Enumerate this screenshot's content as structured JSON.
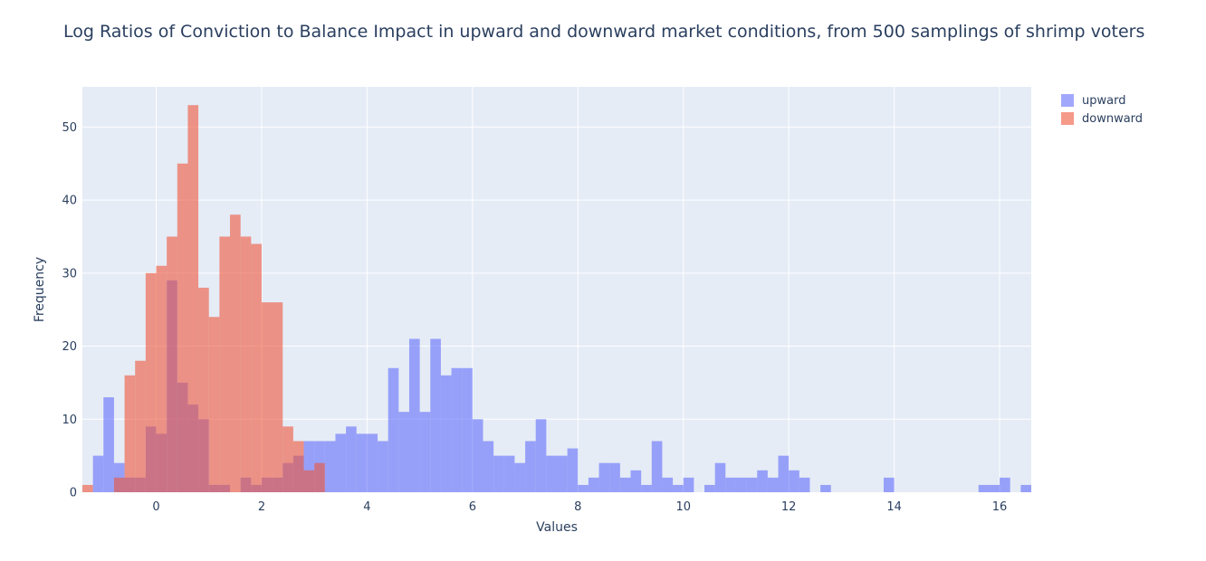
{
  "chart_data": {
    "type": "histogram",
    "title": "Log Ratios of Conviction to Balance Impact in upward and downward market conditions, from 500 samplings of shrimp voters",
    "xlabel": "Values",
    "ylabel": "Frequency",
    "xlim": [
      -1.4,
      16.6
    ],
    "ylim": [
      0,
      55.5
    ],
    "x_ticks": [
      0,
      2,
      4,
      6,
      8,
      10,
      12,
      14,
      16
    ],
    "y_ticks": [
      0,
      10,
      20,
      30,
      40,
      50
    ],
    "bin_width": 0.2,
    "grid": true,
    "barmode": "overlay",
    "opacity": 0.6,
    "legend_position": "top-right",
    "series": [
      {
        "name": "upward",
        "color": "#636efa",
        "bin_start": -1.2,
        "counts": [
          5,
          13,
          4,
          2,
          2,
          9,
          8,
          29,
          15,
          12,
          10,
          1,
          1,
          0,
          2,
          1,
          2,
          2,
          4,
          5,
          7,
          7,
          7,
          8,
          9,
          8,
          8,
          7,
          17,
          11,
          21,
          11,
          21,
          16,
          17,
          17,
          10,
          7,
          5,
          5,
          4,
          7,
          10,
          5,
          5,
          6,
          1,
          2,
          4,
          4,
          2,
          3,
          1,
          7,
          2,
          1,
          2,
          0,
          1,
          4,
          2,
          2,
          2,
          3,
          2,
          5,
          3,
          2,
          0,
          1,
          0,
          0,
          0,
          0,
          0,
          2,
          0,
          0,
          0,
          0,
          0,
          0,
          0,
          0,
          1,
          1,
          2,
          0,
          1
        ]
      },
      {
        "name": "downward",
        "color": "#ef553b",
        "bin_start": -1.4,
        "counts": [
          1,
          0,
          0,
          2,
          16,
          18,
          30,
          31,
          35,
          45,
          53,
          28,
          24,
          35,
          38,
          35,
          34,
          26,
          26,
          9,
          7,
          3,
          4
        ]
      }
    ]
  }
}
